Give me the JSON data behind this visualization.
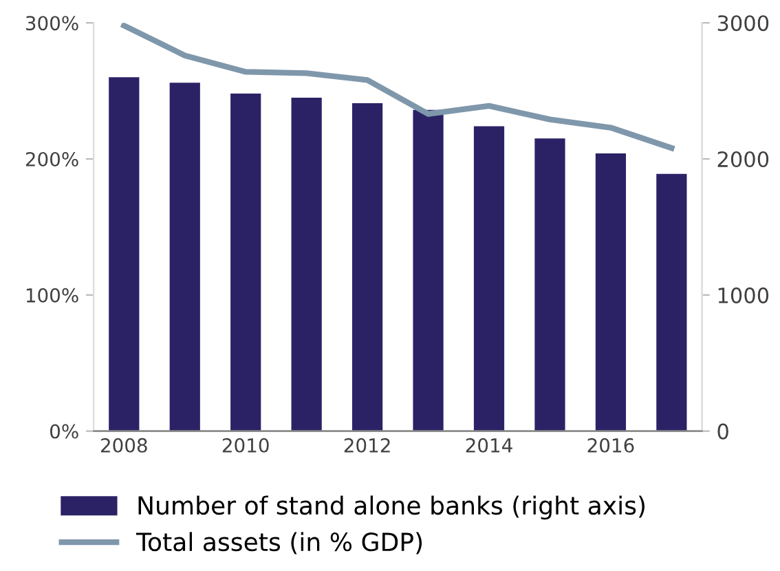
{
  "chart_data": {
    "type": "bar",
    "x": [
      2008,
      2009,
      2010,
      2011,
      2012,
      2013,
      2014,
      2015,
      2016,
      2017
    ],
    "series": [
      {
        "name": "Number of stand alone banks (right axis)",
        "axis": "y2",
        "color": "#2b2266",
        "values": [
          2600,
          2560,
          2480,
          2450,
          2410,
          2360,
          2240,
          2150,
          2040,
          1890
        ]
      },
      {
        "name": "Total assets (in % GDP)",
        "type": "line",
        "color": "#7f97ab",
        "values": [
          298,
          276,
          264,
          263,
          258,
          233,
          239,
          229,
          223,
          208
        ]
      }
    ],
    "xlim": [
      2007.5,
      2017.5
    ],
    "xticks": [
      2008,
      2010,
      2012,
      2014,
      2016
    ],
    "ylim": [
      0,
      300
    ],
    "yticks": [
      {
        "value": 0,
        "label": "0%"
      },
      {
        "value": 100,
        "label": "100%"
      },
      {
        "value": 200,
        "label": "200%"
      },
      {
        "value": 300,
        "label": "300%"
      }
    ],
    "y2lim": [
      0,
      3000
    ],
    "y2ticks": [
      0,
      1000,
      2000,
      3000
    ],
    "legend": "bottom",
    "grid": false,
    "marker": "none",
    "line_style": "solid"
  }
}
